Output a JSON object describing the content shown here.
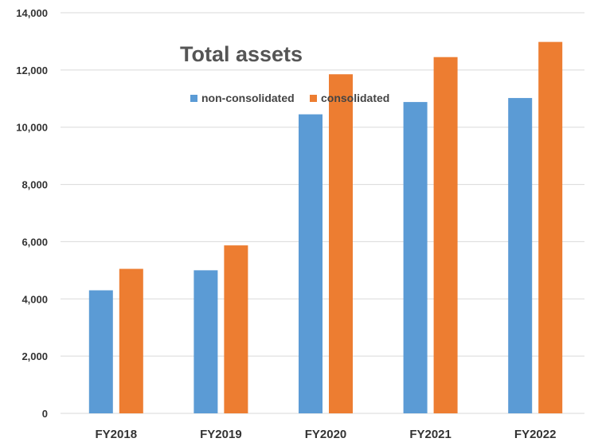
{
  "chart_data": {
    "type": "bar",
    "title": "Total assets",
    "xlabel": "",
    "ylabel": "",
    "categories": [
      "FY2018",
      "FY2019",
      "FY2020",
      "FY2021",
      "FY2022"
    ],
    "series": [
      {
        "name": "non-consolidated",
        "color": "#5b9bd5",
        "values": [
          4300,
          5000,
          10450,
          10880,
          11020
        ]
      },
      {
        "name": "consolidated",
        "color": "#ed7d31",
        "values": [
          5050,
          5870,
          11850,
          12450,
          12980
        ]
      }
    ],
    "ylim": [
      0,
      14000
    ],
    "yticks": [
      "0",
      "2,000",
      "4,000",
      "6,000",
      "8,000",
      "10,000",
      "12,000",
      "14,000"
    ],
    "grid": true,
    "legend_position": "top-center",
    "gridline_color": "#d9d9d9"
  }
}
